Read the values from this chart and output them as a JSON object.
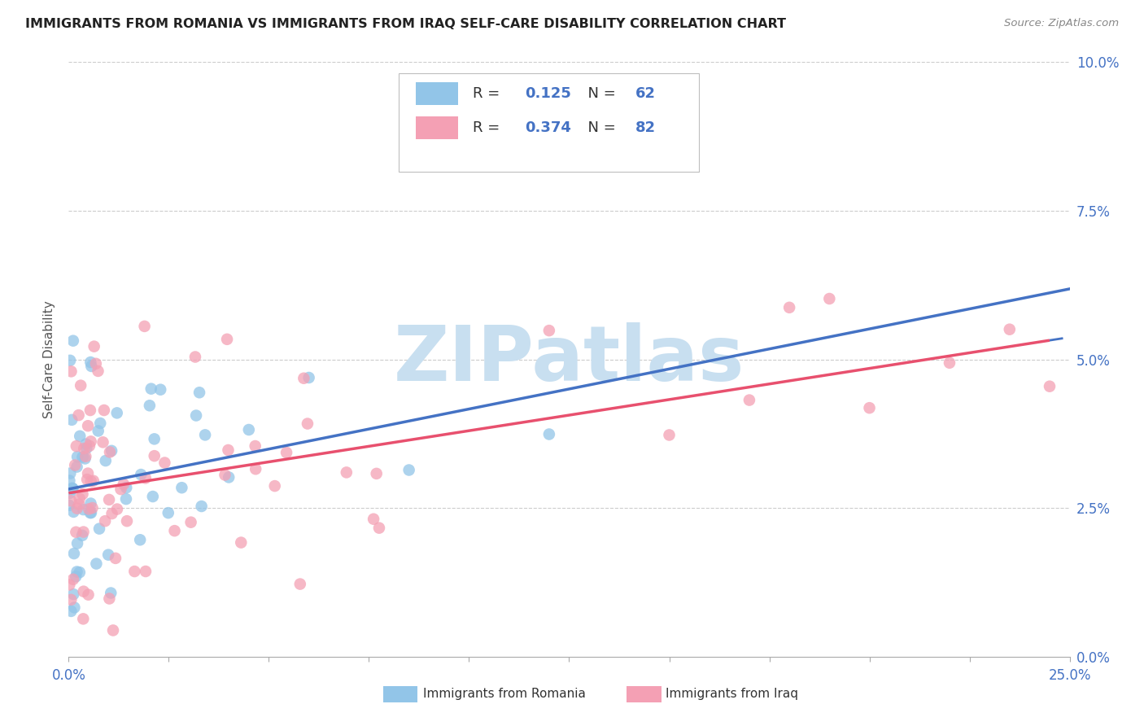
{
  "title": "IMMIGRANTS FROM ROMANIA VS IMMIGRANTS FROM IRAQ SELF-CARE DISABILITY CORRELATION CHART",
  "source": "Source: ZipAtlas.com",
  "xlabel_vals": [
    0.0,
    0.025,
    0.05,
    0.075,
    0.1,
    0.125,
    0.15,
    0.175,
    0.2,
    0.225,
    0.25
  ],
  "xlabel_show": {
    "0.0": "0.0%",
    "0.25": "25.0%"
  },
  "ylabel_ticks": [
    "0.0%",
    "2.5%",
    "5.0%",
    "7.5%",
    "10.0%"
  ],
  "ylabel_vals": [
    0.0,
    0.025,
    0.05,
    0.075,
    0.1
  ],
  "ylabel_label": "Self-Care Disability",
  "legend_label1": "Immigrants from Romania",
  "legend_label2": "Immigrants from Iraq",
  "R1": "0.125",
  "N1": "62",
  "R2": "0.374",
  "N2": "82",
  "color_romania": "#92C5E8",
  "color_iraq": "#F4A0B4",
  "color_line_romania": "#4472C4",
  "color_line_iraq": "#E8506E",
  "color_ticks": "#4472C4",
  "watermark_color": "#C8DFF0",
  "xlim": [
    0.0,
    0.25
  ],
  "ylim": [
    0.0,
    0.1
  ],
  "grid_color": "#CCCCCC",
  "legend_edge_color": "#BBBBBB"
}
